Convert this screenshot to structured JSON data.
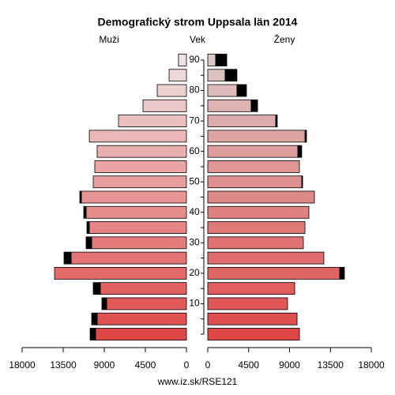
{
  "chart_data": {
    "type": "pyramid",
    "title": "Demografický strom Uppsala län 2014",
    "y_label": "Vek",
    "source": "www.iz.sk/RSE121",
    "categories": [
      null,
      null,
      "10",
      null,
      "20",
      null,
      "30",
      null,
      "40",
      null,
      "50",
      null,
      "60",
      null,
      "70",
      null,
      "80",
      null,
      "90"
    ],
    "series": [
      {
        "name": "Muži",
        "side": "left",
        "color_young": "#e04848",
        "color_old": "#eee2e2",
        "values": [
          9950,
          9780,
          8740,
          9430,
          14450,
          12630,
          10380,
          10640,
          10990,
          11510,
          10210,
          10040,
          9780,
          10640,
          7440,
          4760,
          3200,
          1900,
          870
        ],
        "black_values": [
          600,
          600,
          520,
          780,
          0,
          780,
          610,
          260,
          260,
          170,
          0,
          0,
          0,
          0,
          0,
          0,
          0,
          0,
          0
        ]
      },
      {
        "name": "Ženy",
        "side": "right",
        "color_young": "#e04848",
        "color_old": "#dcc8c8",
        "values": [
          10090,
          9830,
          8780,
          9570,
          14520,
          12780,
          10520,
          10700,
          11130,
          11740,
          10350,
          10090,
          9910,
          10700,
          7480,
          4780,
          3220,
          1910,
          870
        ],
        "black_values": [
          0,
          0,
          0,
          0,
          520,
          0,
          0,
          0,
          0,
          0,
          90,
          0,
          430,
          170,
          170,
          700,
          1040,
          1300,
          1220
        ]
      }
    ],
    "black_color": "#000000",
    "xlim": [
      0,
      18000
    ],
    "xticks": [
      0,
      4500,
      9000,
      13500,
      18000
    ]
  }
}
